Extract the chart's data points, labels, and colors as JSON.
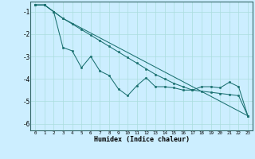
{
  "xlabel": "Humidex (Indice chaleur)",
  "background_color": "#cceeff",
  "grid_color": "#aadddd",
  "line_color": "#1a7070",
  "xlim": [
    -0.5,
    23.5
  ],
  "ylim": [
    -6.3,
    -0.55
  ],
  "yticks": [
    -1,
    -2,
    -3,
    -4,
    -5,
    -6
  ],
  "xticks": [
    0,
    1,
    2,
    3,
    4,
    5,
    6,
    7,
    8,
    9,
    10,
    11,
    12,
    13,
    14,
    15,
    16,
    17,
    18,
    19,
    20,
    21,
    22,
    23
  ],
  "series1_x": [
    0,
    1,
    2,
    3,
    4,
    5,
    6,
    7,
    8,
    9,
    10,
    11,
    12,
    13,
    14,
    15,
    16,
    17,
    18,
    19,
    20,
    21,
    22,
    23
  ],
  "series1_y": [
    -0.7,
    -0.7,
    -1.0,
    -2.6,
    -2.75,
    -3.5,
    -3.0,
    -3.65,
    -3.85,
    -4.45,
    -4.75,
    -4.3,
    -3.95,
    -4.35,
    -4.35,
    -4.4,
    -4.5,
    -4.5,
    -4.35,
    -4.35,
    -4.4,
    -4.15,
    -4.35,
    -5.65
  ],
  "series2_x": [
    0,
    1,
    2,
    3,
    23
  ],
  "series2_y": [
    -0.7,
    -0.7,
    -1.0,
    -1.3,
    -5.65
  ],
  "series3_x": [
    0,
    1,
    2,
    3,
    4,
    5,
    6,
    7,
    8,
    9,
    10,
    11,
    12,
    13,
    14,
    15,
    16,
    17,
    18,
    19,
    20,
    21,
    22,
    23
  ],
  "series3_y": [
    -0.7,
    -0.7,
    -1.0,
    -1.3,
    -1.55,
    -1.8,
    -2.05,
    -2.3,
    -2.55,
    -2.8,
    -3.05,
    -3.3,
    -3.55,
    -3.8,
    -4.0,
    -4.2,
    -4.35,
    -4.5,
    -4.55,
    -4.6,
    -4.65,
    -4.7,
    -4.75,
    -5.65
  ]
}
